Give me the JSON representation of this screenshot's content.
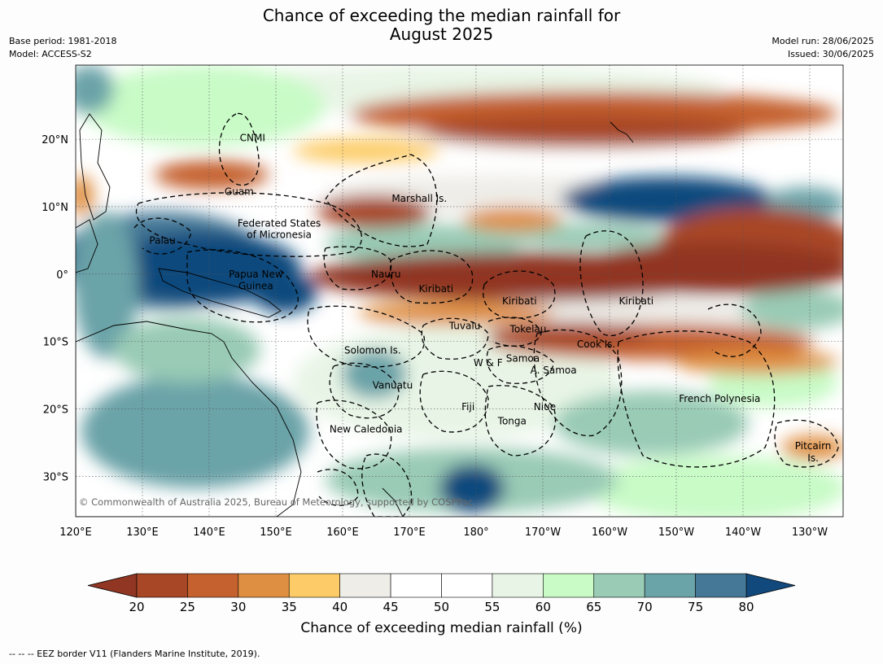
{
  "title_line1": "Chance of exceeding the median rainfall for",
  "title_line2": "August 2025",
  "meta_left": [
    "Base period: 1981-2018",
    "Model: ACCESS-S2"
  ],
  "meta_right": [
    "Model run: 28/06/2025",
    "Issued: 30/06/2025"
  ],
  "map": {
    "lon_labels": [
      "120°E",
      "130°E",
      "140°E",
      "150°E",
      "160°E",
      "170°E",
      "180°",
      "170°W",
      "160°W",
      "150°W",
      "140°W",
      "130°W"
    ],
    "lat_labels": [
      "20°N",
      "10°N",
      "0°",
      "10°S",
      "20°S",
      "30°S"
    ],
    "lat_values": [
      20,
      10,
      0,
      -10,
      -20,
      -30
    ],
    "lon_range": [
      120,
      235
    ],
    "lat_range": [
      -36,
      31
    ],
    "places": [
      {
        "name": "CNMI",
        "lon": 146.5,
        "lat": 20.2
      },
      {
        "name": "Guam",
        "lon": 144.5,
        "lat": 12.2
      },
      {
        "name": "Marshall Is.",
        "lon": 171.5,
        "lat": 11.2
      },
      {
        "name": "Federated States",
        "lon": 150.5,
        "lat": 7.5
      },
      {
        "name": "of Micronesia",
        "lon": 150.5,
        "lat": 5.8
      },
      {
        "name": "Palau",
        "lon": 133,
        "lat": 5
      },
      {
        "name": "Papua New",
        "lon": 147,
        "lat": 0
      },
      {
        "name": "Guinea",
        "lon": 147,
        "lat": -1.8
      },
      {
        "name": "Nauru",
        "lon": 166.5,
        "lat": 0
      },
      {
        "name": "Kiribati",
        "lon": 174,
        "lat": -2.2
      },
      {
        "name": "Kiribati",
        "lon": 186.5,
        "lat": -4
      },
      {
        "name": "Kiribati",
        "lon": 204,
        "lat": -4
      },
      {
        "name": "Tuvalu",
        "lon": 178.3,
        "lat": -7.7
      },
      {
        "name": "Tokelau",
        "lon": 187.8,
        "lat": -8.2
      },
      {
        "name": "Cook Is.",
        "lon": 198,
        "lat": -10.4
      },
      {
        "name": "Solomon Is.",
        "lon": 164.5,
        "lat": -11.3
      },
      {
        "name": "Samoa",
        "lon": 187,
        "lat": -12.5
      },
      {
        "name": "W & F",
        "lon": 181.8,
        "lat": -13.2
      },
      {
        "name": "A. Samoa",
        "lon": 191.6,
        "lat": -14.3
      },
      {
        "name": "Vanuatu",
        "lon": 167.5,
        "lat": -16.5
      },
      {
        "name": "Fiji",
        "lon": 178.8,
        "lat": -19.7
      },
      {
        "name": "Niue",
        "lon": 190.3,
        "lat": -19.7
      },
      {
        "name": "French Polynesia",
        "lon": 216.5,
        "lat": -18.5
      },
      {
        "name": "Tonga",
        "lon": 185.4,
        "lat": -21.8
      },
      {
        "name": "New Caledonia",
        "lon": 163.5,
        "lat": -23
      },
      {
        "name": "Pitcairn",
        "lon": 230.5,
        "lat": -25.5
      },
      {
        "name": "Is.",
        "lon": 230.5,
        "lat": -27.3
      }
    ],
    "copyright": "© Commonwealth of Australia 2025, Bureau of Meteorology, supported by COSPPac"
  },
  "colorbar": {
    "ticks": [
      "20",
      "25",
      "30",
      "35",
      "40",
      "45",
      "50",
      "55",
      "60",
      "65",
      "70",
      "75",
      "80"
    ],
    "colors": [
      "#a84726",
      "#c4612f",
      "#df8f42",
      "#fdcc68",
      "#eeede8",
      "#ffffff",
      "#ffffff",
      "#e8f5e6",
      "#c8fbc6",
      "#99cbb5",
      "#6aa3a8",
      "#447896"
    ],
    "under_color": "#913623",
    "over_color": "#11497d",
    "title": "Chance of exceeding median rainfall (%)"
  },
  "footnote": "--  --  -- EEZ border V11 (Flanders Marine Institute, 2019)."
}
